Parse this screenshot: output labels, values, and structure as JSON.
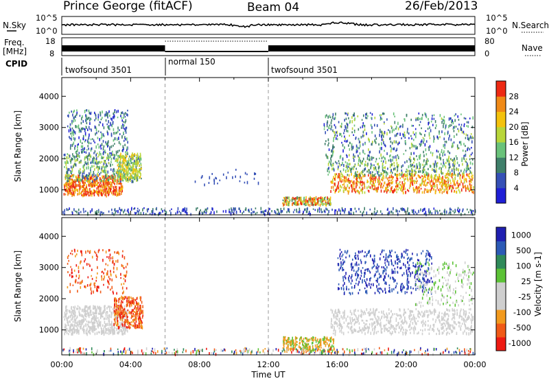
{
  "header": {
    "title": "Prince George (fitACF)",
    "beam": "Beam 04",
    "date": "26/Feb/2013"
  },
  "top_panels": {
    "nsky_label": "N.Sky",
    "nsky_ticks": [
      "10^5",
      "10^0"
    ],
    "nsearch_label": "N.Search",
    "freq_label": "Freq.",
    "freq_unit": "[MHz]",
    "freq_ticks": [
      "18",
      "8"
    ],
    "nave_ticks": [
      "80",
      "0"
    ],
    "nave_label": "Nave",
    "cpid_label": "CPID",
    "cpid_segments": [
      {
        "label": "twofsound 3501",
        "start": 0,
        "end": 6
      },
      {
        "label": "normal 150",
        "start": 6,
        "end": 12
      },
      {
        "label": "twofsound 3501",
        "start": 12,
        "end": 24
      }
    ]
  },
  "colors": {
    "power": [
      "#1f1fd6",
      "#3550b6",
      "#3f7f6a",
      "#6ac27a",
      "#b8d63a",
      "#f4c20d",
      "#f08a17",
      "#ee2a14"
    ],
    "velocity": [
      "#ee1a12",
      "#f05a17",
      "#f29a1e",
      "#cfcfcf",
      "#cfcfcf",
      "#5cc236",
      "#2f8a5a",
      "#2c5ab6",
      "#1f1fb0"
    ]
  },
  "chart_data": [
    {
      "type": "heatmap",
      "name": "power",
      "ylabel": "Slant Range [km]",
      "xlabel": "Time UT",
      "x_ticks": [
        "00:00",
        "04:00",
        "08:00",
        "12:00",
        "16:00",
        "20:00",
        "00:00"
      ],
      "xlim": [
        0,
        24
      ],
      "y_ticks": [
        "1000",
        "2000",
        "3000",
        "4000"
      ],
      "ylim": [
        200,
        4600
      ],
      "colorbar_label": "Power [dB]",
      "colorbar_ticks": [
        "4",
        "8",
        "12",
        "16",
        "20",
        "24",
        "28"
      ],
      "colorbar_range": [
        0,
        32
      ],
      "markers": [
        6,
        12
      ]
    },
    {
      "type": "heatmap",
      "name": "velocity",
      "ylabel": "Slant Range [km]",
      "xlabel": "Time UT",
      "x_ticks": [
        "00:00",
        "04:00",
        "08:00",
        "12:00",
        "16:00",
        "20:00",
        "00:00"
      ],
      "xlim": [
        0,
        24
      ],
      "y_ticks": [
        "1000",
        "2000",
        "3000",
        "4000"
      ],
      "ylim": [
        200,
        4600
      ],
      "colorbar_label": "Velocity [m s-1]",
      "colorbar_ticks": [
        "-1000",
        "-500",
        "-100",
        "-25",
        "25",
        "100",
        "500",
        "1000"
      ],
      "markers": [
        6,
        12
      ]
    }
  ]
}
